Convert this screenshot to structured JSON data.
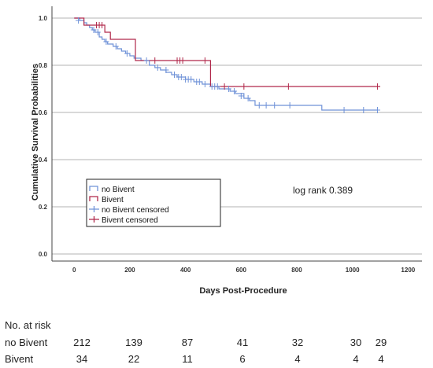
{
  "chart_data": {
    "type": "line",
    "title": "",
    "xlabel": "Days Post-Procedure",
    "ylabel": "Cumulative Survival Probabilities",
    "xlim": [
      -80,
      1250
    ],
    "ylim": [
      -0.03,
      1.05
    ],
    "x_ticks": [
      0,
      200,
      400,
      600,
      800,
      1000,
      1200
    ],
    "y_ticks": [
      0.0,
      0.2,
      0.4,
      0.6,
      0.8,
      1.0
    ],
    "y_tick_labels": [
      "0.0",
      "0.2",
      "0.4",
      "0.6",
      "0.8",
      "1.0"
    ],
    "grid": "horizontal",
    "legend_position": "lower-left",
    "series": [
      {
        "name": "no Bivent",
        "color": "#6f92d8",
        "step": [
          [
            0,
            1.0
          ],
          [
            20,
            0.99
          ],
          [
            35,
            0.98
          ],
          [
            45,
            0.97
          ],
          [
            55,
            0.96
          ],
          [
            65,
            0.95
          ],
          [
            75,
            0.94
          ],
          [
            90,
            0.92
          ],
          [
            100,
            0.91
          ],
          [
            110,
            0.9
          ],
          [
            120,
            0.89
          ],
          [
            140,
            0.88
          ],
          [
            155,
            0.87
          ],
          [
            170,
            0.86
          ],
          [
            185,
            0.85
          ],
          [
            200,
            0.84
          ],
          [
            215,
            0.83
          ],
          [
            240,
            0.82
          ],
          [
            270,
            0.8
          ],
          [
            290,
            0.79
          ],
          [
            310,
            0.78
          ],
          [
            330,
            0.77
          ],
          [
            350,
            0.76
          ],
          [
            370,
            0.75
          ],
          [
            400,
            0.74
          ],
          [
            430,
            0.73
          ],
          [
            460,
            0.72
          ],
          [
            490,
            0.71
          ],
          [
            520,
            0.7
          ],
          [
            560,
            0.69
          ],
          [
            580,
            0.68
          ],
          [
            610,
            0.66
          ],
          [
            630,
            0.65
          ],
          [
            650,
            0.63
          ],
          [
            700,
            0.63
          ],
          [
            890,
            0.61
          ],
          [
            1090,
            0.61
          ]
        ]
      },
      {
        "name": "Bivent",
        "color": "#b0284a",
        "step": [
          [
            0,
            1.0
          ],
          [
            35,
            0.97
          ],
          [
            110,
            0.94
          ],
          [
            130,
            0.91
          ],
          [
            220,
            0.82
          ],
          [
            490,
            0.71
          ],
          [
            1100,
            0.71
          ]
        ]
      },
      {
        "name": "no Bivent censored",
        "color": "#6f92d8",
        "points": [
          [
            15,
            0.99
          ],
          [
            70,
            0.95
          ],
          [
            85,
            0.94
          ],
          [
            115,
            0.9
          ],
          [
            150,
            0.88
          ],
          [
            190,
            0.85
          ],
          [
            260,
            0.82
          ],
          [
            300,
            0.79
          ],
          [
            330,
            0.78
          ],
          [
            360,
            0.76
          ],
          [
            375,
            0.75
          ],
          [
            385,
            0.75
          ],
          [
            400,
            0.74
          ],
          [
            410,
            0.74
          ],
          [
            420,
            0.74
          ],
          [
            440,
            0.73
          ],
          [
            450,
            0.73
          ],
          [
            470,
            0.72
          ],
          [
            495,
            0.71
          ],
          [
            505,
            0.71
          ],
          [
            515,
            0.71
          ],
          [
            555,
            0.7
          ],
          [
            575,
            0.69
          ],
          [
            600,
            0.67
          ],
          [
            625,
            0.66
          ],
          [
            665,
            0.63
          ],
          [
            690,
            0.63
          ],
          [
            720,
            0.63
          ],
          [
            775,
            0.63
          ],
          [
            970,
            0.61
          ],
          [
            1040,
            0.61
          ],
          [
            1090,
            0.61
          ]
        ]
      },
      {
        "name": "Bivent censored",
        "color": "#b0284a",
        "points": [
          [
            80,
            0.97
          ],
          [
            90,
            0.97
          ],
          [
            100,
            0.97
          ],
          [
            290,
            0.82
          ],
          [
            370,
            0.82
          ],
          [
            380,
            0.82
          ],
          [
            390,
            0.82
          ],
          [
            470,
            0.82
          ],
          [
            540,
            0.71
          ],
          [
            610,
            0.71
          ],
          [
            770,
            0.71
          ],
          [
            1090,
            0.71
          ]
        ]
      }
    ],
    "legend": [
      "no Bivent",
      "Bivent",
      "no Bivent censored",
      "Bivent censored"
    ],
    "annotation": "log rank 0.389"
  },
  "risk_table": {
    "title": "No. at risk",
    "rows": [
      {
        "label": "no Bivent",
        "values": [
          "212",
          "139",
          "87",
          "41",
          "32",
          "30",
          "29"
        ]
      },
      {
        "label": "Bivent",
        "values": [
          "34",
          "22",
          "11",
          "6",
          "4",
          "4",
          "4"
        ]
      }
    ]
  }
}
